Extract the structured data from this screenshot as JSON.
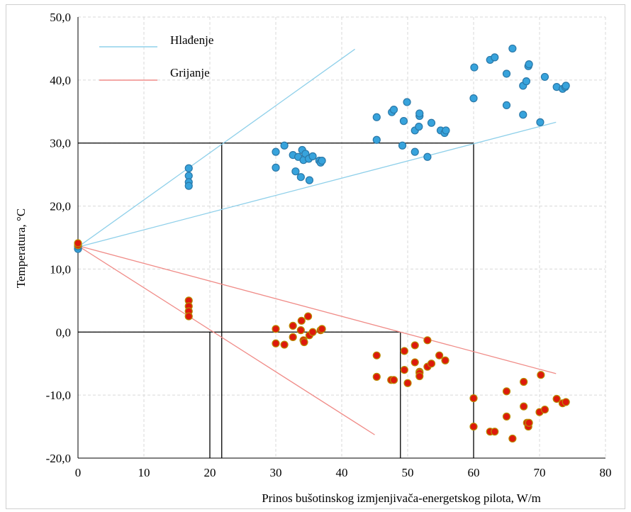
{
  "chart_data": {
    "type": "scatter",
    "xlabel": "Prinos bušotinskog  izmjenjivača-energetskog  pilota, W/m",
    "ylabel": "Temperatura,  °C",
    "xlim": [
      0,
      80
    ],
    "ylim": [
      -20,
      50
    ],
    "x_ticks": [
      "0",
      "10",
      "20",
      "30",
      "40",
      "50",
      "60",
      "70",
      "80"
    ],
    "y_ticks": [
      "50,0",
      "40,0",
      "30,0",
      "20,0",
      "10,0",
      "0,0",
      "-10,0",
      "-20,0"
    ],
    "grid": "dashed",
    "legend_position": "top-left",
    "series": [
      {
        "name": "Hlađenje",
        "color": "#5bb8e6",
        "points": [
          [
            0,
            13.2
          ],
          [
            0,
            13.6
          ],
          [
            16.8,
            26
          ],
          [
            16.8,
            24.8
          ],
          [
            16.8,
            23.8
          ],
          [
            16.8,
            23.2
          ],
          [
            30,
            28.6
          ],
          [
            30,
            26.1
          ],
          [
            31.3,
            29.6
          ],
          [
            32.6,
            28.1
          ],
          [
            33,
            25.5
          ],
          [
            33.4,
            27.8
          ],
          [
            33.8,
            24.6
          ],
          [
            34,
            28.9
          ],
          [
            34.2,
            27.3
          ],
          [
            34.5,
            28.3
          ],
          [
            35,
            27.5
          ],
          [
            35.1,
            24.1
          ],
          [
            35.6,
            27.9
          ],
          [
            36.6,
            27.2
          ],
          [
            36.8,
            26.9
          ],
          [
            37,
            27.2
          ],
          [
            45.3,
            34.1
          ],
          [
            45.3,
            30.5
          ],
          [
            47.6,
            34.9
          ],
          [
            47.9,
            35.3
          ],
          [
            49.2,
            29.6
          ],
          [
            49.4,
            33.5
          ],
          [
            49.9,
            36.5
          ],
          [
            51.1,
            32
          ],
          [
            51.1,
            28.6
          ],
          [
            51.7,
            32.6
          ],
          [
            51.8,
            34.3
          ],
          [
            51.8,
            34.7
          ],
          [
            53,
            27.8
          ],
          [
            53.6,
            33.2
          ],
          [
            55,
            32
          ],
          [
            55.6,
            31.6
          ],
          [
            55.8,
            32
          ],
          [
            60,
            37.1
          ],
          [
            60.1,
            42
          ],
          [
            62.5,
            43.2
          ],
          [
            63.2,
            43.6
          ],
          [
            65,
            36
          ],
          [
            65,
            41
          ],
          [
            65.9,
            45
          ],
          [
            67.5,
            34.5
          ],
          [
            67.5,
            39.1
          ],
          [
            68,
            39.8
          ],
          [
            68.3,
            42.2
          ],
          [
            68.4,
            42.5
          ],
          [
            70.1,
            33.3
          ],
          [
            70.8,
            40.5
          ],
          [
            72.6,
            38.9
          ],
          [
            73.5,
            38.6
          ],
          [
            73.9,
            38.9
          ],
          [
            74,
            39.1
          ]
        ]
      },
      {
        "name": "Grijanje",
        "color": "#ff6a4d",
        "points": [
          [
            0,
            13.8
          ],
          [
            0,
            14.1
          ],
          [
            16.8,
            5
          ],
          [
            16.8,
            4.1
          ],
          [
            16.8,
            3.3
          ],
          [
            16.8,
            2.5
          ],
          [
            30,
            0.5
          ],
          [
            30,
            -1.8
          ],
          [
            31.3,
            -2
          ],
          [
            32.6,
            1
          ],
          [
            32.6,
            -0.8
          ],
          [
            33.8,
            0.3
          ],
          [
            33.9,
            1.8
          ],
          [
            34.2,
            -1.3
          ],
          [
            34.3,
            -1.6
          ],
          [
            34.9,
            2.5
          ],
          [
            35.1,
            -0.5
          ],
          [
            35.6,
            0
          ],
          [
            36.8,
            0.3
          ],
          [
            37,
            0.5
          ],
          [
            45.3,
            -3.7
          ],
          [
            45.3,
            -7.1
          ],
          [
            47.5,
            -7.6
          ],
          [
            47.9,
            -7.6
          ],
          [
            49.5,
            -3
          ],
          [
            49.5,
            -6
          ],
          [
            50,
            -8.1
          ],
          [
            51.1,
            -2.1
          ],
          [
            51.1,
            -4.8
          ],
          [
            51.8,
            -6.3
          ],
          [
            51.8,
            -6.5
          ],
          [
            51.8,
            -7
          ],
          [
            53,
            -1.3
          ],
          [
            53,
            -5.5
          ],
          [
            53.6,
            -5
          ],
          [
            54.8,
            -3.7
          ],
          [
            55.7,
            -4.5
          ],
          [
            60,
            -10.5
          ],
          [
            60,
            -15
          ],
          [
            62.5,
            -15.8
          ],
          [
            63.2,
            -15.8
          ],
          [
            65,
            -9.4
          ],
          [
            65,
            -13.4
          ],
          [
            65.9,
            -16.9
          ],
          [
            67.6,
            -7.9
          ],
          [
            67.6,
            -11.8
          ],
          [
            68.1,
            -14.4
          ],
          [
            68.3,
            -15
          ],
          [
            68.4,
            -14.4
          ],
          [
            70,
            -12.7
          ],
          [
            70.2,
            -6.8
          ],
          [
            70.8,
            -12.3
          ],
          [
            72.6,
            -10.6
          ],
          [
            73.5,
            -11.3
          ],
          [
            74,
            -11.1
          ]
        ]
      }
    ],
    "trend_lines": [
      {
        "series": "Hlađenje",
        "color": "#8fd0ea",
        "from": [
          0,
          13.5
        ],
        "to": [
          42,
          44.9
        ]
      },
      {
        "series": "Hlađenje",
        "color": "#8fd0ea",
        "from": [
          0,
          13.5
        ],
        "to": [
          72.5,
          33.3
        ]
      },
      {
        "series": "Grijanje",
        "color": "#f08c88",
        "from": [
          0,
          13.7
        ],
        "to": [
          45,
          -16.3
        ]
      },
      {
        "series": "Grijanje",
        "color": "#f08c88",
        "from": [
          0,
          13.7
        ],
        "to": [
          72.5,
          -6.6
        ]
      }
    ],
    "reference_lines": [
      {
        "from": [
          0,
          30
        ],
        "to": [
          60,
          30
        ]
      },
      {
        "from": [
          21.8,
          -20
        ],
        "to": [
          21.8,
          30
        ]
      },
      {
        "from": [
          60,
          -20
        ],
        "to": [
          60,
          30
        ]
      },
      {
        "from": [
          0,
          0
        ],
        "to": [
          48.9,
          0
        ]
      },
      {
        "from": [
          20,
          -20
        ],
        "to": [
          20,
          0
        ]
      },
      {
        "from": [
          48.9,
          -20
        ],
        "to": [
          48.9,
          0
        ]
      }
    ]
  }
}
